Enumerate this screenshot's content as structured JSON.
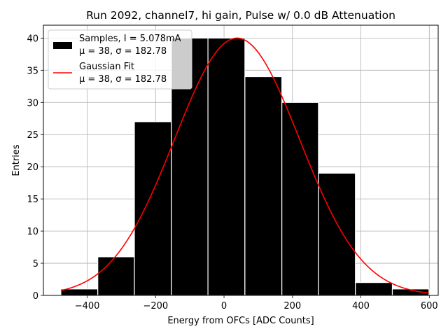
{
  "chart_data": {
    "type": "bar",
    "title": "Run 2092, channel7, hi gain, Pulse w/ 0.0 dB Attenuation",
    "xlabel": "Energy from OFCs [ADC Counts]",
    "ylabel": "Entries",
    "xlim": [
      -528,
      626
    ],
    "ylim": [
      0,
      42
    ],
    "grid": true,
    "xticks": [
      -400,
      -200,
      0,
      200,
      400,
      600
    ],
    "xtick_labels": [
      "−400",
      "−200",
      "0",
      "200",
      "400",
      "600"
    ],
    "yticks": [
      0,
      5,
      10,
      15,
      20,
      25,
      30,
      35,
      40
    ],
    "ytick_labels": [
      "0",
      "5",
      "10",
      "15",
      "20",
      "25",
      "30",
      "35",
      "40"
    ],
    "histogram": {
      "name": "Samples, I = 5.078mA",
      "stats": "μ = 38, σ = 182.78",
      "color": "#000000",
      "edge_color": "#ffffff",
      "bin_edges": [
        -477,
        -369,
        -262,
        -154,
        -47,
        61,
        169,
        276,
        384,
        492,
        599
      ],
      "counts": [
        1,
        6,
        27,
        40,
        40,
        34,
        30,
        19,
        2,
        1
      ]
    },
    "fit": {
      "name": "Gaussian Fit",
      "stats": "μ = 38, σ = 182.78",
      "color": "#ff0000",
      "mu": 38,
      "sigma": 182.78,
      "amplitude": 40,
      "x_range": [
        -477,
        599
      ]
    },
    "legend_position": "upper-left"
  }
}
